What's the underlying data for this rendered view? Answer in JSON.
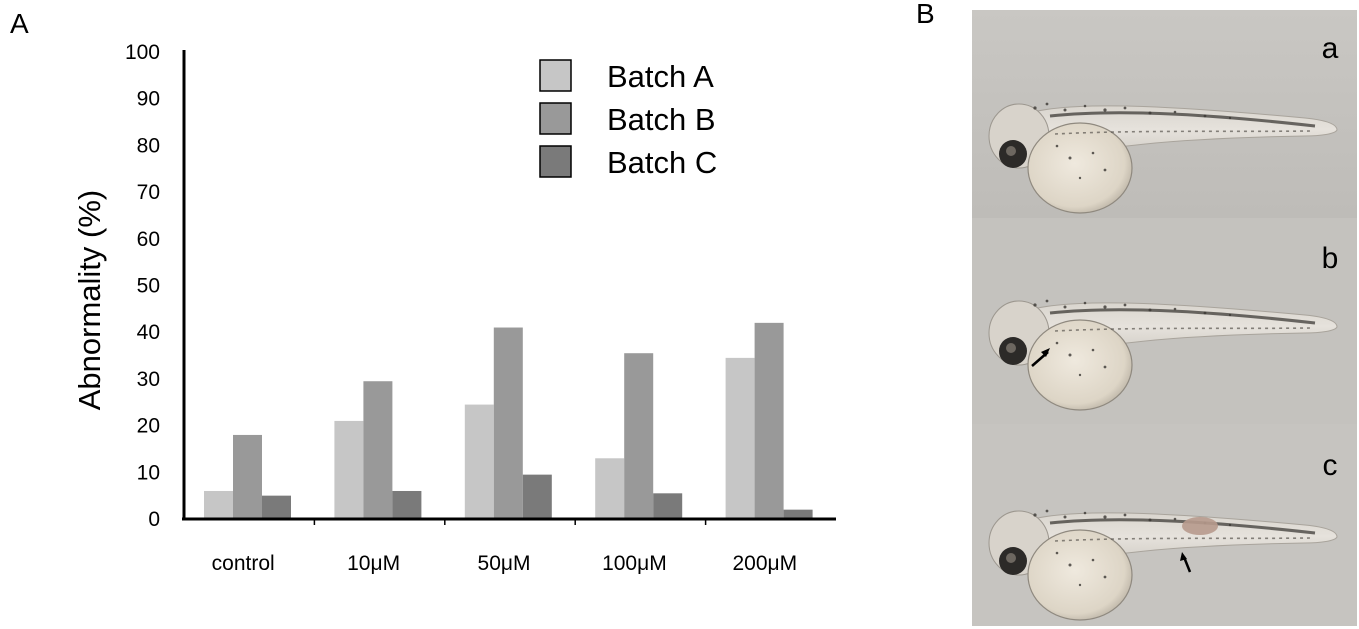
{
  "panels": {
    "left_label": "A",
    "right_label": "B"
  },
  "chart_data": {
    "type": "bar",
    "title": "",
    "xlabel": "",
    "ylabel": "Abnormality (%)",
    "ylim": [
      0,
      100
    ],
    "yticks": [
      0,
      10,
      20,
      30,
      40,
      50,
      60,
      70,
      80,
      90,
      100
    ],
    "categories": [
      "control",
      "10μM",
      "50μM",
      "100μM",
      "200μM"
    ],
    "series": [
      {
        "name": "Batch A",
        "color": "#c6c6c6",
        "values": [
          6,
          21,
          24.5,
          13,
          34.5
        ]
      },
      {
        "name": "Batch B",
        "color": "#999999",
        "values": [
          18,
          29.5,
          41,
          35.5,
          42
        ]
      },
      {
        "name": "Batch C",
        "color": "#7a7a7a",
        "values": [
          5,
          6,
          9.5,
          5.5,
          2
        ]
      }
    ],
    "legend_position": "top-right",
    "grid": false
  },
  "photos": {
    "items": [
      {
        "letter": "a",
        "arrow": false
      },
      {
        "letter": "b",
        "arrow": true
      },
      {
        "letter": "c",
        "arrow": true
      }
    ]
  }
}
